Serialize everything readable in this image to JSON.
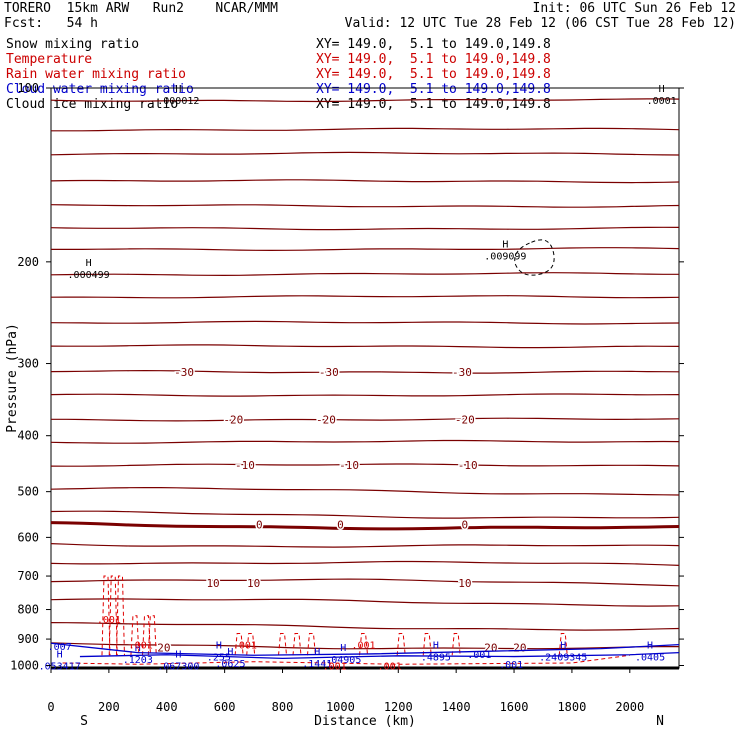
{
  "header": {
    "model": "TORERO  15km ARW   Run2    NCAR/MMM",
    "init": "Init: 06 UTC Sun 26 Feb 12",
    "fcst": "Fcst:   54 h",
    "valid": "Valid: 12 UTC Tue 28 Feb 12 (06 CST Tue 28 Feb 12)"
  },
  "fields": [
    {
      "name": "Snow mixing ratio",
      "xy": "",
      "color": "#000000"
    },
    {
      "name": "Temperature",
      "xy": "XY= 149.0,  5.1 to 149.0,149.8",
      "color": "#cc0000"
    },
    {
      "name": "Rain water mixing ratio",
      "xy": "XY= 149.0,  5.1 to 149.0,149.8",
      "color": "#cc0000"
    },
    {
      "name": "Cloud water mixing ratio",
      "xy": "XY= 149.0,  5.1 to 149.0,149.8",
      "color": "#0000cc"
    },
    {
      "name": "Cloud ice mixing ratio",
      "xy": "XY= 149.0,  5.1 to 149.0,149.8",
      "color": "#000000"
    }
  ],
  "first_xy": "XY= 149.0,  5.1 to 149.0,149.8",
  "colors": {
    "temperature": "#7a0000",
    "freezing": "#7a0000",
    "rain": "#e00000",
    "cloud_water": "#0000cc",
    "cloud_ice": "#000000"
  },
  "chart_data": {
    "type": "line",
    "title": "",
    "xlabel": "Distance (km)",
    "ylabel": "Pressure (hPa)",
    "xlim": [
      0,
      2170
    ],
    "ylim": [
      1010,
      100
    ],
    "y_scale": "log",
    "x_ticks": [
      "0",
      "200",
      "400",
      "600",
      "800",
      "1000",
      "1200",
      "1400",
      "1600",
      "1800",
      "2000"
    ],
    "y_ticks": [
      "100",
      "200",
      "300",
      "400",
      "500",
      "600",
      "700",
      "800",
      "900",
      "1000"
    ],
    "x_tick_values": [
      0,
      200,
      400,
      600,
      800,
      1000,
      1200,
      1400,
      1600,
      1800,
      2000
    ],
    "y_tick_values": [
      100,
      200,
      300,
      400,
      500,
      600,
      700,
      800,
      900,
      1000
    ],
    "end_labels": {
      "left": "S",
      "right": "N"
    },
    "isotherm_pressures": [
      105,
      118,
      130,
      145,
      160,
      175,
      190,
      210,
      230,
      255,
      280,
      310,
      340,
      375,
      410,
      450,
      495,
      545,
      570,
      615,
      660,
      710,
      770,
      850,
      920
    ],
    "isotherm_labels": [
      {
        "text": "-30",
        "x": [
          460,
          960,
          1420
        ],
        "p": 310
      },
      {
        "text": "-20",
        "x": [
          630,
          950,
          1430
        ],
        "p": 375
      },
      {
        "text": "-10",
        "x": [
          670,
          1030,
          1440
        ],
        "p": 450
      },
      {
        "text": "0",
        "x": [
          720,
          1000,
          1430
        ],
        "p": 570
      },
      {
        "text": "10",
        "x": [
          560,
          700,
          1430
        ],
        "p": 720
      },
      {
        "text": "20",
        "x": [
          390,
          1520,
          1620
        ],
        "p": 930
      }
    ],
    "extrema_labels": [
      {
        "mark": "H",
        "value": ".000012",
        "x": 440,
        "p": 105
      },
      {
        "mark": "H",
        "value": ".0001",
        "x": 2110,
        "p": 105
      },
      {
        "mark": "H",
        "value": ".000499",
        "x": 130,
        "p": 210
      },
      {
        "mark": "H",
        "value": ".009099",
        "x": 1570,
        "p": 195
      },
      {
        "mark": "H",
        "value": ".1203",
        "x": 300,
        "p": 975
      },
      {
        "mark": "H",
        "value": ".255",
        "x": 580,
        "p": 965
      },
      {
        "mark": "H",
        "value": ".0625",
        "x": 620,
        "p": 990
      },
      {
        "mark": "H",
        "value": ".1441",
        "x": 920,
        "p": 990
      },
      {
        "mark": "H",
        "value": ".04905",
        "x": 1010,
        "p": 975
      },
      {
        "mark": "H",
        "value": ".4895",
        "x": 1330,
        "p": 965
      },
      {
        "mark": "H",
        "value": ".2409345",
        "x": 1770,
        "p": 965
      },
      {
        "mark": "H",
        "value": ".0405",
        "x": 2070,
        "p": 965
      },
      {
        "mark": "H",
        "value": ".053417",
        "x": 30,
        "p": 1000
      },
      {
        "mark": "H",
        "value": ".067300",
        "x": 440,
        "p": 1000
      }
    ],
    "rain_labels": [
      {
        "text": ".001",
        "x": 200,
        "p": 830
      },
      {
        "text": ".001",
        "x": 310,
        "p": 920
      },
      {
        "text": ".001",
        "x": 670,
        "p": 920
      },
      {
        "text": ".001",
        "x": 1080,
        "p": 920
      },
      {
        "text": ".001",
        "x": 980,
        "p": 1000
      },
      {
        "text": ".001",
        "x": 1170,
        "p": 1000
      }
    ],
    "cloud_labels": [
      {
        "text": ".007",
        "x": 30,
        "p": 925
      },
      {
        "text": ".001",
        "x": 1480,
        "p": 955
      },
      {
        "text": ".001",
        "x": 1590,
        "p": 995
      }
    ],
    "grid": false,
    "legend": "top-left"
  }
}
